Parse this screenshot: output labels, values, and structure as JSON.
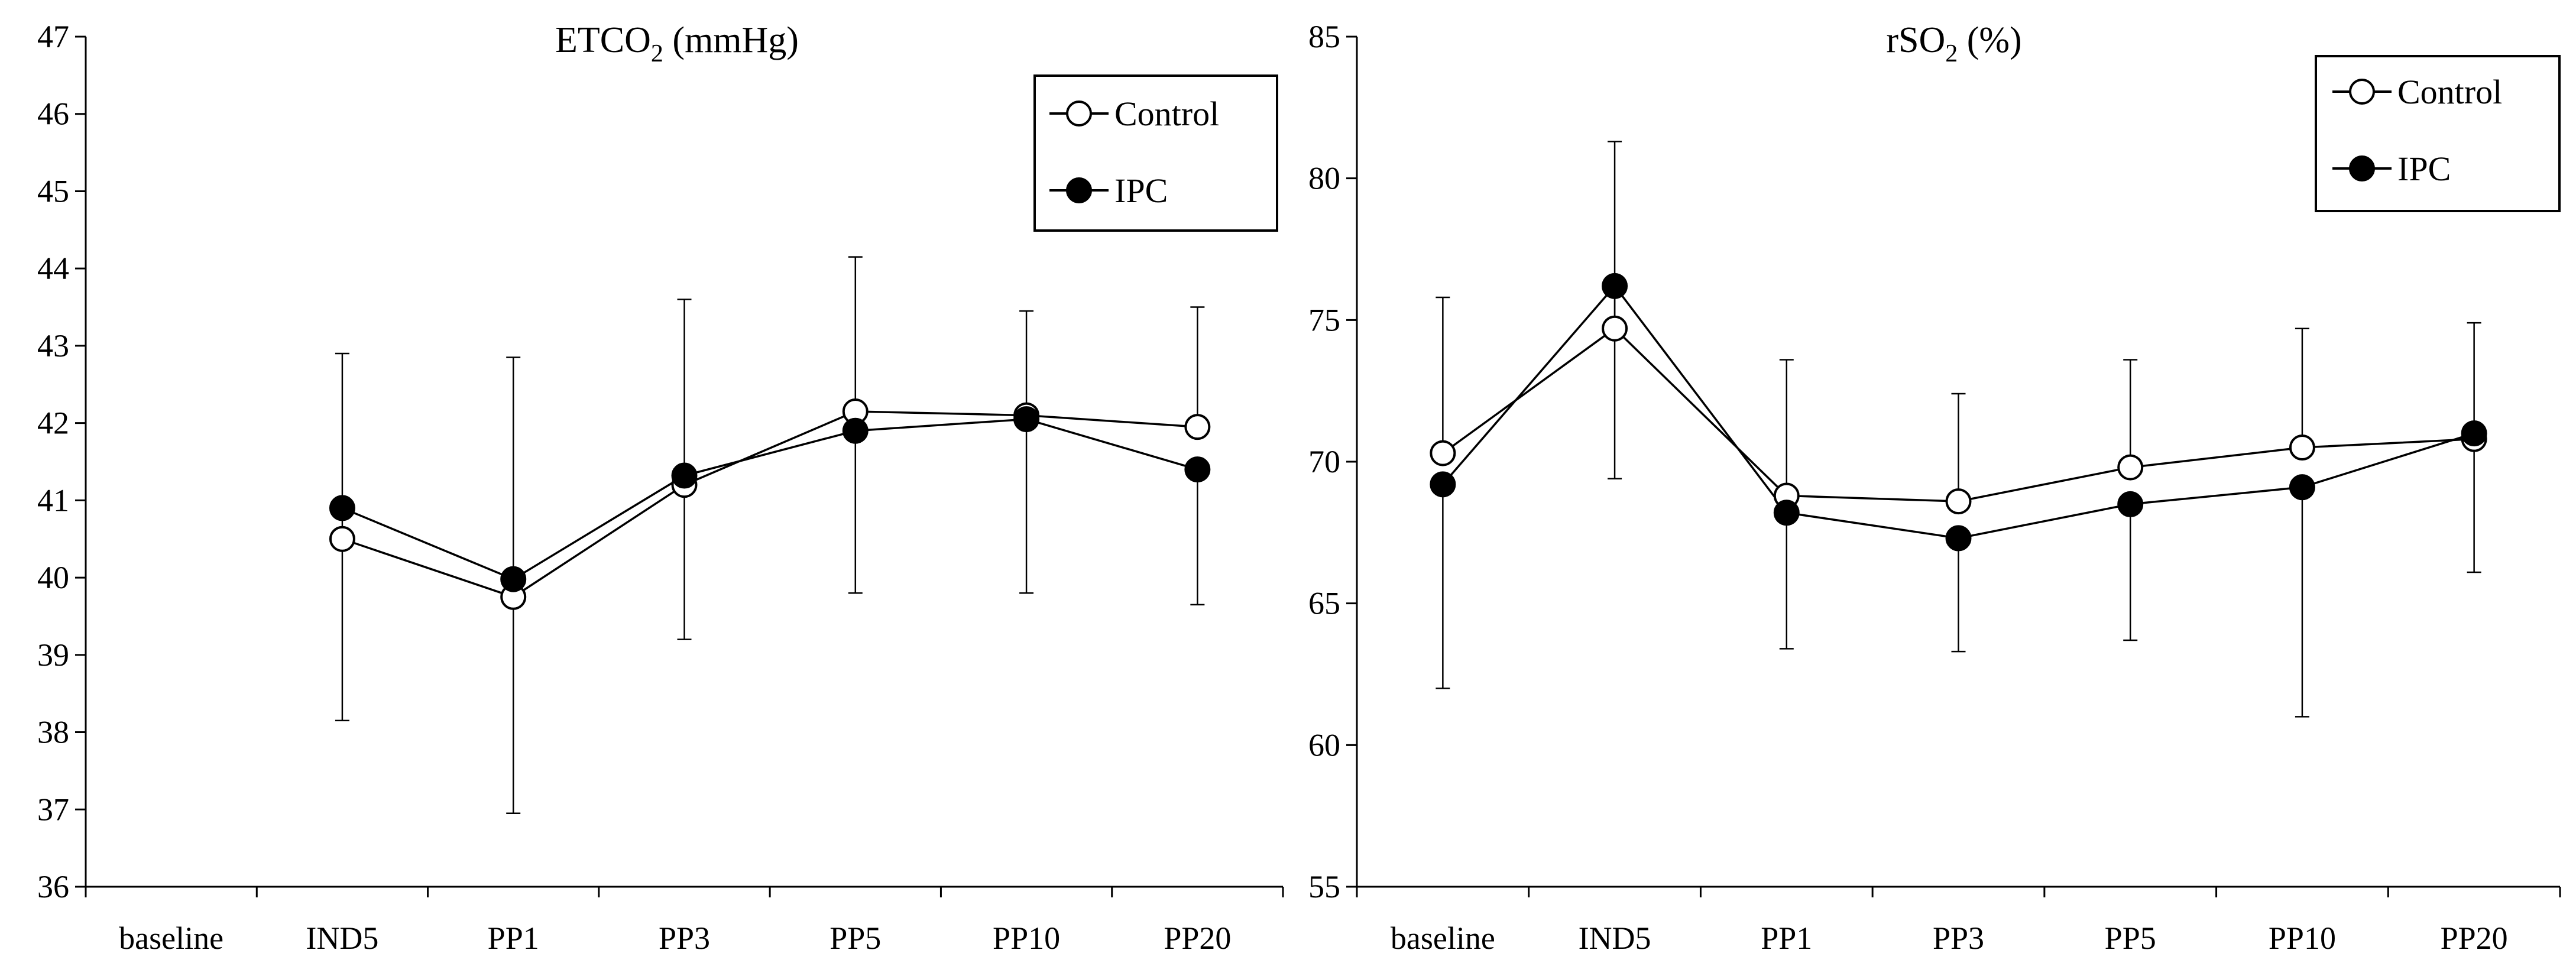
{
  "chart_data": [
    {
      "type": "line",
      "title": "ETCO2 (mmHg)",
      "title_main": "ETCO",
      "title_sub": "2",
      "title_rest": " (mmHg)",
      "xlabel": "",
      "ylabel": "",
      "categories": [
        "baseline",
        "IND5",
        "PP1",
        "PP3",
        "PP5",
        "PP10",
        "PP20"
      ],
      "ylim": [
        36,
        47
      ],
      "yticks": [
        36,
        37,
        38,
        39,
        40,
        41,
        42,
        43,
        44,
        45,
        46,
        47
      ],
      "legend_position": "top-right",
      "series": [
        {
          "name": "Control",
          "marker": "open-circle",
          "values": [
            null,
            40.5,
            39.75,
            41.2,
            42.15,
            42.1,
            41.95
          ],
          "error_upper": [
            null,
            42.9,
            42.85,
            43.6,
            44.15,
            43.45,
            43.5
          ],
          "error_lower": [
            null,
            38.15,
            null,
            null,
            null,
            null,
            null
          ]
        },
        {
          "name": "IPC",
          "marker": "filled-circle",
          "values": [
            null,
            40.9,
            39.98,
            41.32,
            41.9,
            42.05,
            41.4
          ],
          "error_upper": [
            null,
            null,
            null,
            null,
            null,
            null,
            null
          ],
          "error_lower": [
            null,
            null,
            36.95,
            39.2,
            39.8,
            39.8,
            39.65
          ]
        }
      ]
    },
    {
      "type": "line",
      "title": "rSO2 (%)",
      "title_main": "rSO",
      "title_sub": "2",
      "title_rest": " (%)",
      "xlabel": "",
      "ylabel": "",
      "categories": [
        "baseline",
        "IND5",
        "PP1",
        "PP3",
        "PP5",
        "PP10",
        "PP20"
      ],
      "ylim": [
        55,
        85
      ],
      "yticks": [
        55,
        60,
        65,
        70,
        75,
        80,
        85
      ],
      "legend_position": "top-right",
      "series": [
        {
          "name": "Control",
          "marker": "open-circle",
          "values": [
            70.3,
            74.7,
            68.8,
            68.6,
            69.8,
            70.5,
            70.8
          ],
          "error_upper": [
            75.8,
            81.3,
            73.6,
            72.4,
            73.6,
            74.7,
            74.9
          ],
          "error_lower": [
            null,
            null,
            null,
            null,
            null,
            null,
            null
          ]
        },
        {
          "name": "IPC",
          "marker": "filled-circle",
          "values": [
            69.2,
            76.2,
            68.2,
            67.3,
            68.5,
            69.1,
            71.0
          ],
          "error_upper": [
            null,
            null,
            null,
            null,
            null,
            null,
            null
          ],
          "error_lower": [
            62.0,
            69.4,
            63.4,
            63.3,
            63.7,
            61.0,
            66.1
          ]
        }
      ]
    }
  ]
}
